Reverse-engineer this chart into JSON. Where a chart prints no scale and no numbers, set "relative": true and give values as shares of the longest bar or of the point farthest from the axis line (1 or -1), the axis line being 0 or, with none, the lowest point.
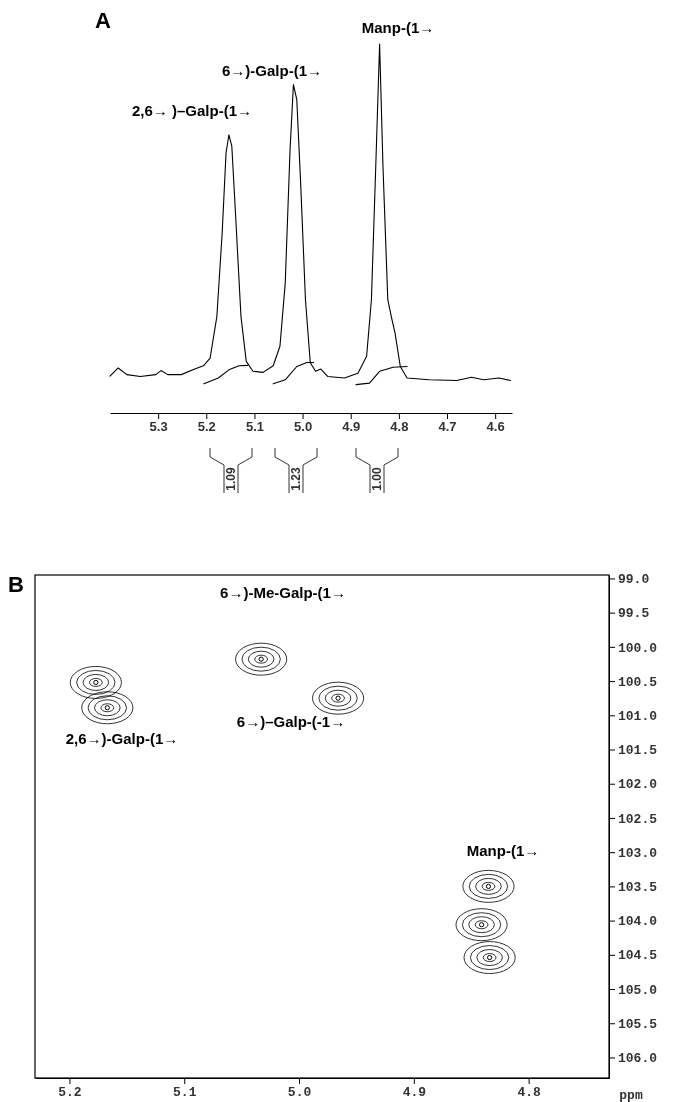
{
  "chart_data": [
    {
      "type": "line",
      "title": "A",
      "relative": true,
      "xlim": [
        5.4,
        4.565
      ],
      "xticks": [
        {
          "value": 5.3,
          "label": "5.3"
        },
        {
          "value": 5.2,
          "label": "5.2"
        },
        {
          "value": 5.1,
          "label": "5.1"
        },
        {
          "value": 5.0,
          "label": "5.0"
        },
        {
          "value": 4.9,
          "label": "4.9"
        },
        {
          "value": 4.8,
          "label": "4.8"
        },
        {
          "value": 4.7,
          "label": "4.7"
        },
        {
          "value": 4.6,
          "label": "4.6"
        }
      ],
      "series": [
        {
          "color": "#000000",
          "x": [
            5.4,
            5.383,
            5.365,
            5.337,
            5.305,
            5.294,
            5.28,
            5.252,
            5.224,
            5.206,
            5.192,
            5.178,
            5.167,
            5.159,
            5.153,
            5.147,
            5.139,
            5.128,
            5.117,
            5.103,
            5.082,
            5.061,
            5.047,
            5.036,
            5.026,
            5.019,
            5.012,
            5.004,
            4.994,
            4.984,
            4.973,
            4.962,
            4.948,
            4.913,
            4.885,
            4.867,
            4.857,
            4.848,
            4.84,
            4.833,
            4.823,
            4.815,
            4.808,
            4.797,
            4.783,
            4.737,
            4.68,
            4.649,
            4.624,
            4.592,
            4.568
          ],
          "values": [
            0.1,
            0.122,
            0.104,
            0.099,
            0.104,
            0.115,
            0.104,
            0.104,
            0.119,
            0.128,
            0.149,
            0.262,
            0.488,
            0.705,
            0.754,
            0.723,
            0.533,
            0.262,
            0.14,
            0.113,
            0.11,
            0.128,
            0.181,
            0.352,
            0.714,
            0.89,
            0.849,
            0.623,
            0.307,
            0.136,
            0.113,
            0.119,
            0.099,
            0.095,
            0.108,
            0.154,
            0.307,
            0.668,
            1.0,
            0.668,
            0.307,
            0.257,
            0.217,
            0.126,
            0.095,
            0.09,
            0.088,
            0.097,
            0.09,
            0.095,
            0.088
          ]
        },
        {
          "color": "#000000",
          "x": [
            5.205,
            5.175,
            5.153,
            5.132,
            5.114
          ],
          "values": [
            0.079,
            0.095,
            0.117,
            0.128,
            0.129
          ]
        },
        {
          "color": "#000000",
          "x": [
            5.061,
            5.036,
            5.012,
            4.991,
            4.977
          ],
          "values": [
            0.079,
            0.09,
            0.126,
            0.137,
            0.137
          ]
        },
        {
          "color": "#000000",
          "x": [
            4.889,
            4.861,
            4.84,
            4.812,
            4.783
          ],
          "values": [
            0.077,
            0.081,
            0.113,
            0.124,
            0.126
          ]
        }
      ],
      "annotations": [
        "2,6→ )–Galp-(1→",
        "6→)-Galp-(1→",
        "Manp-(1→",
        "1.09",
        "1.23",
        "1.00"
      ],
      "tick_labels": "x",
      "grid": false
    },
    {
      "type": "scatter",
      "title": "B",
      "xlabel": "ppm",
      "xlim": [
        5.23,
        4.73
      ],
      "ylim": [
        106.3,
        98.95
      ],
      "xticks": [
        {
          "value": 5.2,
          "label": "5.2"
        },
        {
          "value": 5.1,
          "label": "5.1"
        },
        {
          "value": 5.0,
          "label": "5.0"
        },
        {
          "value": 4.9,
          "label": "4.9"
        },
        {
          "value": 4.8,
          "label": "4.8"
        }
      ],
      "yticks": [
        {
          "value": 99,
          "label": "99.0"
        },
        {
          "value": 99.5,
          "label": "99.5"
        },
        {
          "value": 100,
          "label": "100.0"
        },
        {
          "value": 100.5,
          "label": "100.5"
        },
        {
          "value": 101,
          "label": "101.0"
        },
        {
          "value": 101.5,
          "label": "101.5"
        },
        {
          "value": 102,
          "label": "102.0"
        },
        {
          "value": 102.5,
          "label": "102.5"
        },
        {
          "value": 103,
          "label": "103.0"
        },
        {
          "value": 103.5,
          "label": "103.5"
        },
        {
          "value": 104,
          "label": "104.0"
        },
        {
          "value": 104.5,
          "label": "104.5"
        },
        {
          "value": 105,
          "label": "105.0"
        },
        {
          "value": 105.5,
          "label": "105.5"
        },
        {
          "value": 106,
          "label": "106.0"
        }
      ],
      "series": [
        {
          "color": "#000000",
          "x": [
            5.177,
            5.167,
            5.033,
            4.966,
            4.841,
            4.835,
            4.834
          ],
          "values": [
            100.52,
            100.89,
            100.18,
            100.75,
            104.06,
            103.5,
            104.54
          ]
        }
      ],
      "annotations": [
        "6→)-Me-Galp-(1→",
        "6→)–Galp-(-1→",
        "2,6→)-Galp-(1→",
        "Manp-(1→"
      ],
      "marker": "circle",
      "grid": false
    }
  ]
}
